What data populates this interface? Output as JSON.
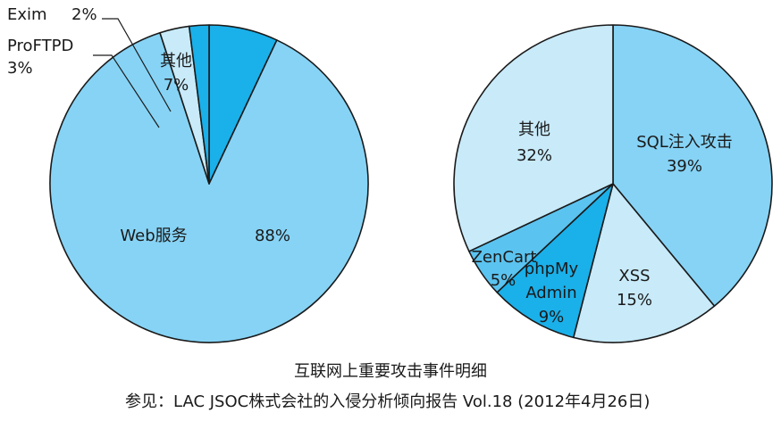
{
  "caption": {
    "title": "互联网上重要攻击事件明细",
    "source": "参见：LAC JSOC株式会社的入侵分析倾向报告 Vol.18 (2012年4月26日)"
  },
  "chart_data": [
    {
      "type": "pie",
      "slices": [
        {
          "label": "其他",
          "value": 7,
          "value_label": "7%",
          "color": "#1ab0ea"
        },
        {
          "label": "Web服务",
          "value": 88,
          "value_label": "88%",
          "color": "#86d3f5"
        },
        {
          "label": "ProFTPD",
          "value": 3,
          "value_label": "3%",
          "color": "#c8eaf9"
        },
        {
          "label": "Exim",
          "value": 2,
          "value_label": "2%",
          "color": "#1ab0ea"
        }
      ]
    },
    {
      "type": "pie",
      "slices": [
        {
          "label": "SQL注入攻击",
          "value": 39,
          "value_label": "39%",
          "color": "#86d3f5"
        },
        {
          "label": "XSS",
          "value": 15,
          "value_label": "15%",
          "color": "#c8eaf9"
        },
        {
          "label": "phpMy Admin",
          "value": 9,
          "value_label": "9%",
          "color": "#1ab0ea"
        },
        {
          "label": "ZenCart",
          "value": 5,
          "value_label": "5%",
          "color": "#5bc3ef"
        },
        {
          "label": "其他",
          "value": 32,
          "value_label": "32%",
          "color": "#c8eaf9"
        }
      ]
    }
  ]
}
